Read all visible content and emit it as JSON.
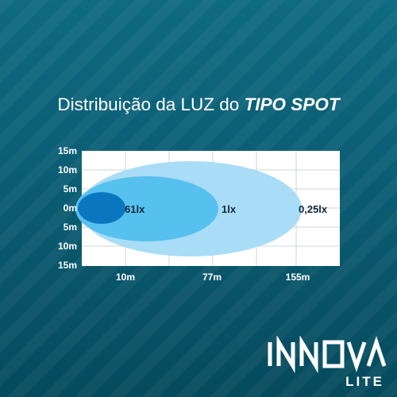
{
  "title": {
    "prefix": "Distribuição da LUZ do",
    "emphasis": "TIPO SPOT"
  },
  "chart_data": {
    "type": "diagram",
    "y_ticks": [
      "15m",
      "10m",
      "5m",
      "0m",
      "5m",
      "10m",
      "15m"
    ],
    "x_ticks": [
      "10m",
      "77m",
      "155m"
    ],
    "zones": [
      {
        "label": "61lx",
        "color": "#0a76c0"
      },
      {
        "label": "1lx",
        "color": "#56c0ee"
      },
      {
        "label": "0,25lx",
        "color": "#a9dcf6"
      }
    ],
    "grid": true
  },
  "logo": {
    "brand": "INNOVA",
    "sub": "LITE"
  }
}
